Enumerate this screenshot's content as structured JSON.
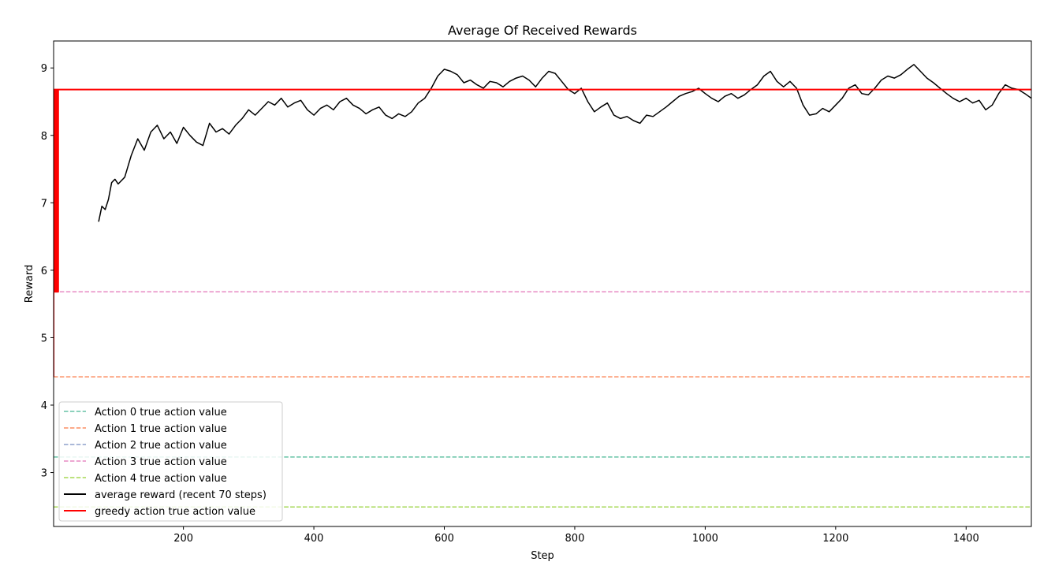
{
  "chart_data": {
    "type": "line",
    "title": "Average Of Received Rewards",
    "xlabel": "Step",
    "ylabel": "Reward",
    "xlim": [
      1,
      1500
    ],
    "ylim": [
      2.2,
      9.4
    ],
    "xticks": [
      200,
      400,
      600,
      800,
      1000,
      1200,
      1400
    ],
    "yticks": [
      3,
      4,
      5,
      6,
      7,
      8,
      9
    ],
    "grid": false,
    "legend_position": "lower-left",
    "series": [
      {
        "name": "Action 0 true action value",
        "style": "dashed",
        "color": "#66c2a5",
        "value": 3.23
      },
      {
        "name": "Action 1 true action value",
        "style": "dashed",
        "color": "#fc8d62",
        "value": 4.42
      },
      {
        "name": "Action 2 true action value",
        "style": "dashed",
        "color": "#8da0cb",
        "value": 2.49
      },
      {
        "name": "Action 3 true action value",
        "style": "dashed",
        "color": "#e78ac3",
        "value": 5.68
      },
      {
        "name": "Action 4 true action value",
        "style": "dashed",
        "color": "#a6d854",
        "value": 2.49
      },
      {
        "name": "average reward (recent 70 steps)",
        "style": "solid",
        "color": "#000000",
        "x": [
          70,
          75,
          80,
          85,
          90,
          95,
          100,
          110,
          120,
          130,
          140,
          150,
          160,
          170,
          180,
          190,
          200,
          210,
          220,
          230,
          240,
          250,
          260,
          270,
          280,
          290,
          300,
          310,
          320,
          330,
          340,
          350,
          360,
          370,
          380,
          390,
          400,
          410,
          420,
          430,
          440,
          450,
          460,
          470,
          480,
          490,
          500,
          510,
          520,
          530,
          540,
          550,
          560,
          570,
          580,
          590,
          600,
          610,
          620,
          630,
          640,
          650,
          660,
          670,
          680,
          690,
          700,
          710,
          720,
          730,
          740,
          750,
          760,
          770,
          780,
          790,
          800,
          810,
          820,
          830,
          840,
          850,
          860,
          870,
          880,
          890,
          900,
          910,
          920,
          930,
          940,
          950,
          960,
          970,
          980,
          990,
          1000,
          1010,
          1020,
          1030,
          1040,
          1050,
          1060,
          1070,
          1080,
          1090,
          1100,
          1110,
          1120,
          1130,
          1140,
          1150,
          1160,
          1170,
          1180,
          1190,
          1200,
          1210,
          1220,
          1230,
          1240,
          1250,
          1260,
          1270,
          1280,
          1290,
          1300,
          1310,
          1320,
          1330,
          1340,
          1350,
          1360,
          1370,
          1380,
          1390,
          1400,
          1410,
          1420,
          1430,
          1440,
          1450,
          1460,
          1470,
          1480,
          1490,
          1500
        ],
        "y": [
          6.72,
          6.95,
          6.9,
          7.05,
          7.3,
          7.35,
          7.28,
          7.38,
          7.7,
          7.95,
          7.78,
          8.05,
          8.15,
          7.95,
          8.05,
          7.88,
          8.12,
          8.0,
          7.9,
          7.85,
          8.18,
          8.05,
          8.1,
          8.02,
          8.15,
          8.25,
          8.38,
          8.3,
          8.4,
          8.5,
          8.45,
          8.55,
          8.42,
          8.48,
          8.52,
          8.38,
          8.3,
          8.4,
          8.45,
          8.38,
          8.5,
          8.55,
          8.45,
          8.4,
          8.32,
          8.38,
          8.42,
          8.3,
          8.25,
          8.32,
          8.28,
          8.35,
          8.48,
          8.55,
          8.7,
          8.88,
          8.98,
          8.95,
          8.9,
          8.78,
          8.82,
          8.75,
          8.7,
          8.8,
          8.78,
          8.72,
          8.8,
          8.85,
          8.88,
          8.82,
          8.72,
          8.85,
          8.95,
          8.92,
          8.8,
          8.68,
          8.62,
          8.7,
          8.5,
          8.35,
          8.42,
          8.48,
          8.3,
          8.25,
          8.28,
          8.22,
          8.18,
          8.3,
          8.28,
          8.35,
          8.42,
          8.5,
          8.58,
          8.62,
          8.65,
          8.7,
          8.62,
          8.55,
          8.5,
          8.58,
          8.62,
          8.55,
          8.6,
          8.68,
          8.75,
          8.88,
          8.95,
          8.8,
          8.72,
          8.8,
          8.7,
          8.45,
          8.3,
          8.32,
          8.4,
          8.35,
          8.45,
          8.55,
          8.7,
          8.75,
          8.62,
          8.6,
          8.7,
          8.82,
          8.88,
          8.85,
          8.9,
          8.98,
          9.05,
          8.95,
          8.85,
          8.78,
          8.7,
          8.62,
          8.55,
          8.5,
          8.55,
          8.48,
          8.52,
          8.38,
          8.45,
          8.62,
          8.75,
          8.7,
          8.68,
          8.62,
          8.55
        ]
      },
      {
        "name": "greedy action true action value",
        "style": "solid",
        "color": "#ff0000",
        "x": [
          1,
          1,
          2,
          2,
          3,
          3,
          4,
          4,
          5,
          5,
          6,
          6,
          7,
          7,
          8,
          8,
          1500
        ],
        "y": [
          4.42,
          5.68,
          5.68,
          8.68,
          8.68,
          5.68,
          5.68,
          8.68,
          8.68,
          5.68,
          5.68,
          8.68,
          8.68,
          5.68,
          5.68,
          8.68,
          8.68
        ]
      }
    ],
    "legend_order": [
      0,
      1,
      2,
      3,
      4,
      5,
      6
    ]
  }
}
